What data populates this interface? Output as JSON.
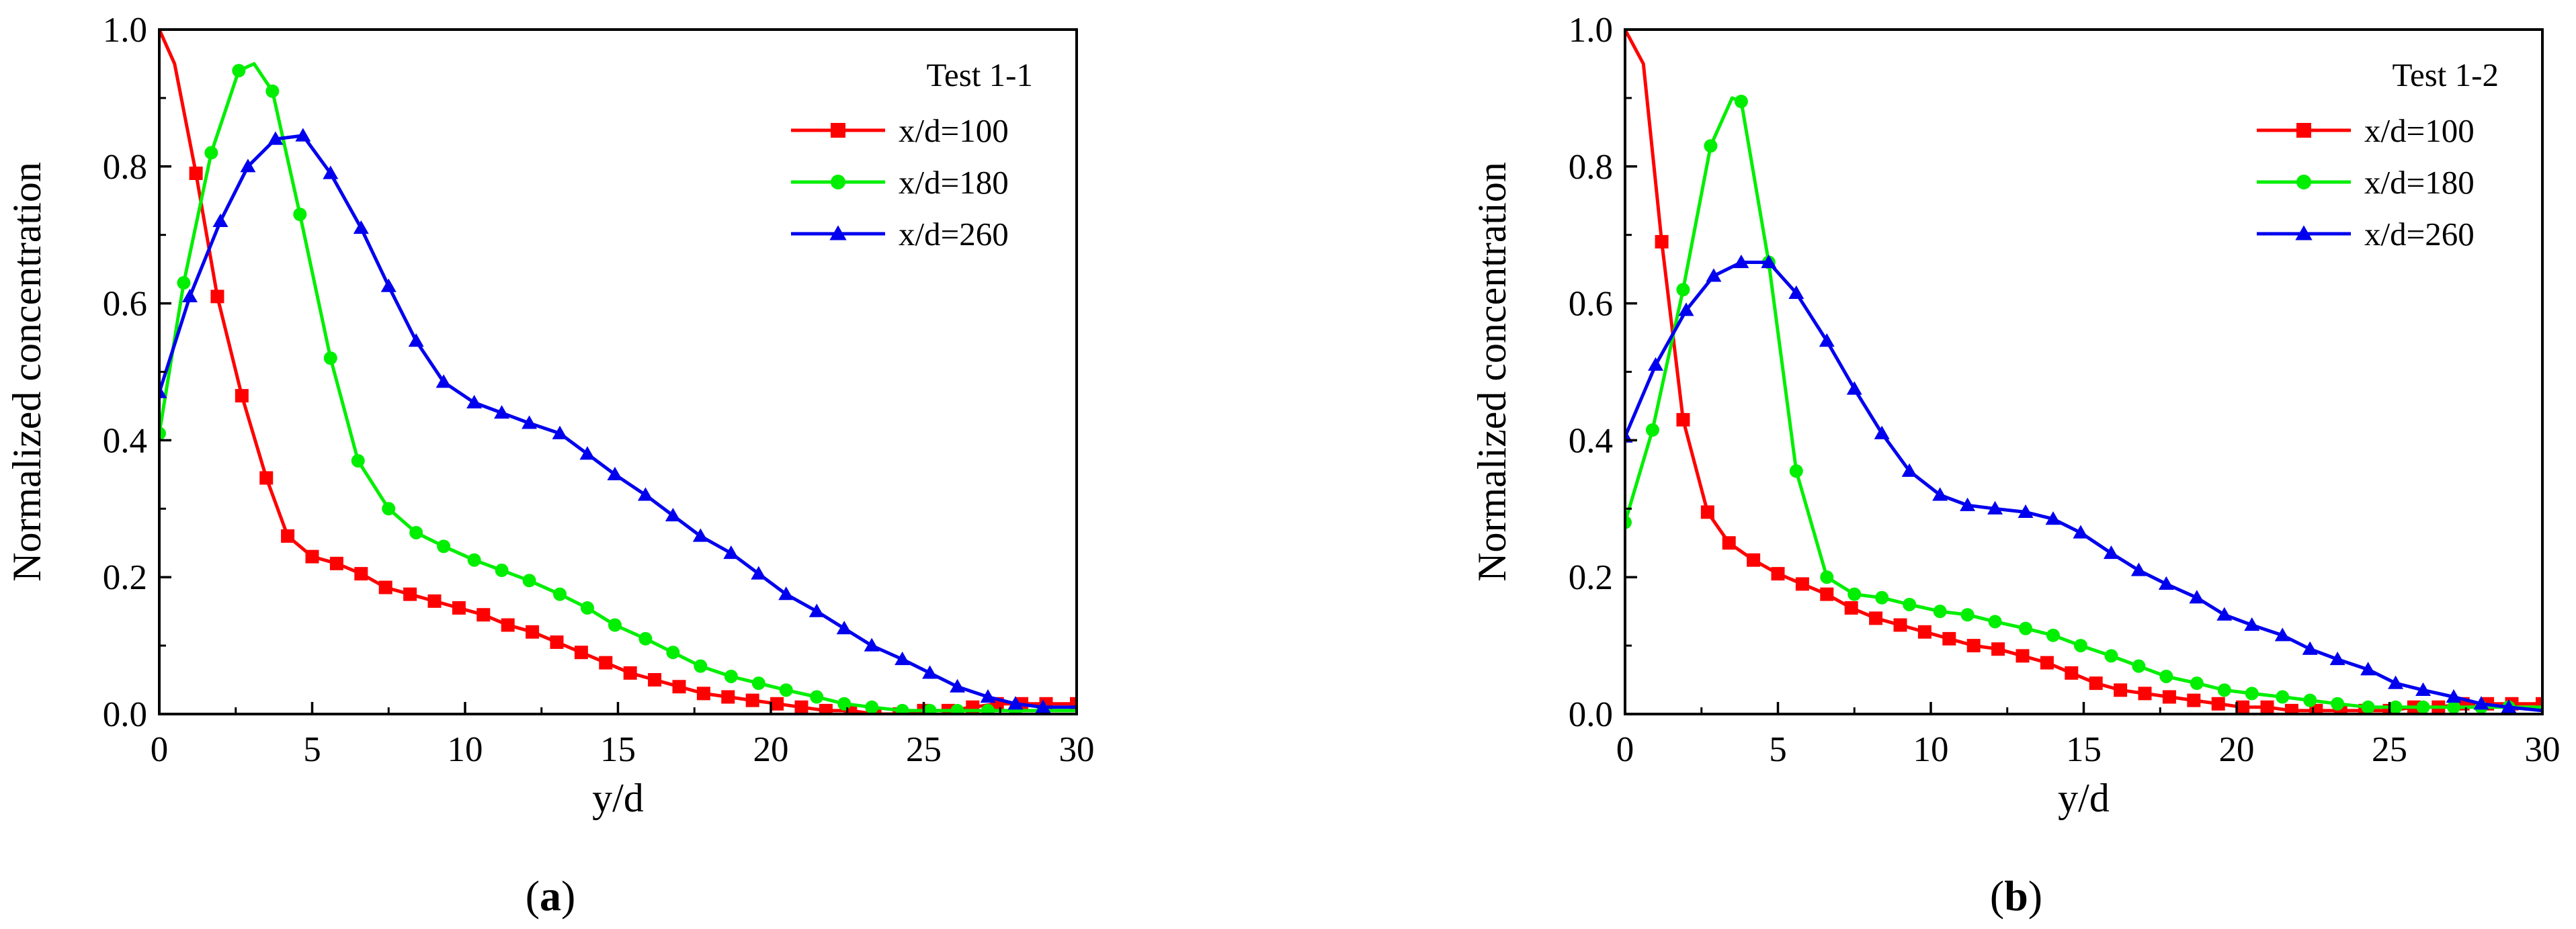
{
  "chart_data": [
    {
      "type": "line",
      "panel_label": "(a)",
      "panel_letter": "a",
      "legend_title": "Test 1-1",
      "xlabel": "y/d",
      "ylabel": "Normalized concentration",
      "xlim": [
        0,
        30
      ],
      "ylim": [
        0,
        1.0
      ],
      "xticks": [
        0,
        5,
        10,
        15,
        20,
        25,
        30
      ],
      "yticks": [
        0.0,
        0.2,
        0.4,
        0.6,
        0.8,
        1.0
      ],
      "ytick_labels": [
        "0.0",
        "0.2",
        "0.4",
        "0.6",
        "0.8",
        "1.0"
      ],
      "series": [
        {
          "name": "x/d=100",
          "color": "#ff0000",
          "marker": "square",
          "x": [
            0,
            0.5,
            1.2,
            1.9,
            2.7,
            3.5,
            4.2,
            5,
            5.8,
            6.6,
            7.4,
            8.2,
            9,
            9.8,
            10.6,
            11.4,
            12.2,
            13,
            13.8,
            14.6,
            15.4,
            16.2,
            17,
            17.8,
            18.6,
            19.4,
            20.2,
            21,
            21.8,
            22.6,
            23.4,
            24.2,
            25,
            25.8,
            26.6,
            27.4,
            28.2,
            29,
            30
          ],
          "y": [
            1.0,
            0.95,
            0.79,
            0.61,
            0.465,
            0.345,
            0.26,
            0.23,
            0.22,
            0.205,
            0.185,
            0.175,
            0.165,
            0.155,
            0.145,
            0.13,
            0.12,
            0.105,
            0.09,
            0.075,
            0.06,
            0.05,
            0.04,
            0.03,
            0.025,
            0.02,
            0.015,
            0.01,
            0.005,
            0.005,
            0.0,
            0.0,
            0.005,
            0.005,
            0.01,
            0.015,
            0.015,
            0.015,
            0.015
          ],
          "marker_x": [
            1.2,
            1.9,
            2.7,
            3.5,
            4.2,
            5,
            5.8,
            6.6,
            7.4,
            8.2,
            9,
            9.8,
            10.6,
            11.4,
            12.2,
            13,
            13.8,
            14.6,
            15.4,
            16.2,
            17,
            17.8,
            18.6,
            19.4,
            20.2,
            21,
            21.8,
            22.6,
            23.4,
            24.2,
            25,
            25.8,
            26.6,
            27.4,
            28.2,
            29,
            30
          ],
          "marker_y": [
            0.79,
            0.61,
            0.465,
            0.345,
            0.26,
            0.23,
            0.22,
            0.205,
            0.185,
            0.175,
            0.165,
            0.155,
            0.145,
            0.13,
            0.12,
            0.105,
            0.09,
            0.075,
            0.06,
            0.05,
            0.04,
            0.03,
            0.025,
            0.02,
            0.015,
            0.01,
            0.005,
            0.005,
            0.0,
            0.0,
            0.005,
            0.005,
            0.01,
            0.015,
            0.015,
            0.015,
            0.015
          ]
        },
        {
          "name": "x/d=180",
          "color": "#00ee00",
          "marker": "circle",
          "x": [
            0,
            0.8,
            1.7,
            2.6,
            3.1,
            3.7,
            4.6,
            5.6,
            6.5,
            7.5,
            8.4,
            9.3,
            10.3,
            11.2,
            12.1,
            13.1,
            14,
            14.9,
            15.9,
            16.8,
            17.7,
            18.7,
            19.6,
            20.5,
            21.5,
            22.4,
            23.3,
            24.3,
            25.2,
            26.1,
            27.1,
            28,
            28.9,
            30
          ],
          "y": [
            0.41,
            0.63,
            0.82,
            0.94,
            0.95,
            0.91,
            0.73,
            0.52,
            0.37,
            0.3,
            0.265,
            0.245,
            0.225,
            0.21,
            0.195,
            0.175,
            0.155,
            0.13,
            0.11,
            0.09,
            0.07,
            0.055,
            0.045,
            0.035,
            0.025,
            0.015,
            0.01,
            0.005,
            0.005,
            0.005,
            0.005,
            0.005,
            0.005,
            0.005
          ],
          "marker_x": [
            0,
            0.8,
            1.7,
            2.6,
            3.7,
            4.6,
            5.6,
            6.5,
            7.5,
            8.4,
            9.3,
            10.3,
            11.2,
            12.1,
            13.1,
            14,
            14.9,
            15.9,
            16.8,
            17.7,
            18.7,
            19.6,
            20.5,
            21.5,
            22.4,
            23.3,
            24.3,
            25.2,
            26.1,
            27.1,
            28,
            28.9
          ],
          "marker_y": [
            0.41,
            0.63,
            0.82,
            0.94,
            0.91,
            0.73,
            0.52,
            0.37,
            0.3,
            0.265,
            0.245,
            0.225,
            0.21,
            0.195,
            0.175,
            0.155,
            0.13,
            0.11,
            0.09,
            0.07,
            0.055,
            0.045,
            0.035,
            0.025,
            0.015,
            0.01,
            0.005,
            0.005,
            0.005,
            0.005,
            0.005,
            0.005
          ]
        },
        {
          "name": "x/d=260",
          "color": "#0000ee",
          "marker": "triangle",
          "x": [
            0,
            1,
            2,
            2.9,
            3.8,
            4.7,
            5.6,
            6.6,
            7.5,
            8.4,
            9.3,
            10.3,
            11.2,
            12.1,
            13.1,
            14,
            14.9,
            15.9,
            16.8,
            17.7,
            18.7,
            19.6,
            20.5,
            21.5,
            22.4,
            23.3,
            24.3,
            25.2,
            26.1,
            27.1,
            28,
            28.9,
            30
          ],
          "y": [
            0.47,
            0.61,
            0.72,
            0.8,
            0.84,
            0.845,
            0.79,
            0.71,
            0.625,
            0.545,
            0.485,
            0.455,
            0.44,
            0.425,
            0.41,
            0.38,
            0.35,
            0.32,
            0.29,
            0.26,
            0.235,
            0.205,
            0.175,
            0.15,
            0.125,
            0.1,
            0.08,
            0.06,
            0.04,
            0.025,
            0.015,
            0.01,
            0.01
          ],
          "marker_x": [
            0,
            1,
            2,
            2.9,
            3.8,
            4.7,
            5.6,
            6.6,
            7.5,
            8.4,
            9.3,
            10.3,
            11.2,
            12.1,
            13.1,
            14,
            14.9,
            15.9,
            16.8,
            17.7,
            18.7,
            19.6,
            20.5,
            21.5,
            22.4,
            23.3,
            24.3,
            25.2,
            26.1,
            27.1,
            28,
            28.9
          ],
          "marker_y": [
            0.47,
            0.61,
            0.72,
            0.8,
            0.84,
            0.845,
            0.79,
            0.71,
            0.625,
            0.545,
            0.485,
            0.455,
            0.44,
            0.425,
            0.41,
            0.38,
            0.35,
            0.32,
            0.29,
            0.26,
            0.235,
            0.205,
            0.175,
            0.15,
            0.125,
            0.1,
            0.08,
            0.06,
            0.04,
            0.025,
            0.015,
            0.01
          ]
        }
      ]
    },
    {
      "type": "line",
      "panel_label": "(b)",
      "panel_letter": "b",
      "legend_title": "Test 1-2",
      "xlabel": "y/d",
      "ylabel": "Normalized concentration",
      "xlim": [
        0,
        30
      ],
      "ylim": [
        0,
        1.0
      ],
      "xticks": [
        0,
        5,
        10,
        15,
        20,
        25,
        30
      ],
      "yticks": [
        0.0,
        0.2,
        0.4,
        0.6,
        0.8,
        1.0
      ],
      "ytick_labels": [
        "0.0",
        "0.2",
        "0.4",
        "0.6",
        "0.8",
        "1.0"
      ],
      "series": [
        {
          "name": "x/d=100",
          "color": "#ff0000",
          "marker": "square",
          "x": [
            0,
            0.6,
            1.2,
            1.9,
            2.7,
            3.4,
            4.2,
            5,
            5.8,
            6.6,
            7.4,
            8.2,
            9,
            9.8,
            10.6,
            11.4,
            12.2,
            13,
            13.8,
            14.6,
            15.4,
            16.2,
            17,
            17.8,
            18.6,
            19.4,
            20.2,
            21,
            21.8,
            22.6,
            23.4,
            24.2,
            25,
            25.8,
            26.6,
            27.4,
            28.2,
            29,
            30
          ],
          "y": [
            1.0,
            0.95,
            0.69,
            0.43,
            0.295,
            0.25,
            0.225,
            0.205,
            0.19,
            0.175,
            0.155,
            0.14,
            0.13,
            0.12,
            0.11,
            0.1,
            0.095,
            0.085,
            0.075,
            0.06,
            0.045,
            0.035,
            0.03,
            0.025,
            0.02,
            0.015,
            0.01,
            0.01,
            0.005,
            0.005,
            0.005,
            0.005,
            0.005,
            0.01,
            0.01,
            0.015,
            0.015,
            0.015,
            0.015
          ],
          "marker_x": [
            1.2,
            1.9,
            2.7,
            3.4,
            4.2,
            5,
            5.8,
            6.6,
            7.4,
            8.2,
            9,
            9.8,
            10.6,
            11.4,
            12.2,
            13,
            13.8,
            14.6,
            15.4,
            16.2,
            17,
            17.8,
            18.6,
            19.4,
            20.2,
            21,
            21.8,
            22.6,
            23.4,
            24.2,
            25,
            25.8,
            26.6,
            27.4,
            28.2,
            29,
            30
          ],
          "marker_y": [
            0.69,
            0.43,
            0.295,
            0.25,
            0.225,
            0.205,
            0.19,
            0.175,
            0.155,
            0.14,
            0.13,
            0.12,
            0.11,
            0.1,
            0.095,
            0.085,
            0.075,
            0.06,
            0.045,
            0.035,
            0.03,
            0.025,
            0.02,
            0.015,
            0.01,
            0.01,
            0.005,
            0.005,
            0.005,
            0.005,
            0.005,
            0.01,
            0.01,
            0.015,
            0.015,
            0.015,
            0.015
          ]
        },
        {
          "name": "x/d=180",
          "color": "#00ee00",
          "marker": "circle",
          "x": [
            0,
            0.9,
            1.9,
            2.8,
            3.5,
            3.8,
            4.7,
            5.6,
            6.6,
            7.5,
            8.4,
            9.3,
            10.3,
            11.2,
            12.1,
            13.1,
            14,
            14.9,
            15.9,
            16.8,
            17.7,
            18.7,
            19.6,
            20.5,
            21.5,
            22.4,
            23.3,
            24.3,
            25.2,
            26.1,
            27.1,
            28,
            28.9,
            30
          ],
          "y": [
            0.28,
            0.415,
            0.62,
            0.83,
            0.9,
            0.895,
            0.66,
            0.355,
            0.2,
            0.175,
            0.17,
            0.16,
            0.15,
            0.145,
            0.135,
            0.125,
            0.115,
            0.1,
            0.085,
            0.07,
            0.055,
            0.045,
            0.035,
            0.03,
            0.025,
            0.02,
            0.015,
            0.01,
            0.01,
            0.01,
            0.01,
            0.01,
            0.01,
            0.01
          ],
          "marker_x": [
            0,
            0.9,
            1.9,
            2.8,
            3.8,
            4.7,
            5.6,
            6.6,
            7.5,
            8.4,
            9.3,
            10.3,
            11.2,
            12.1,
            13.1,
            14,
            14.9,
            15.9,
            16.8,
            17.7,
            18.7,
            19.6,
            20.5,
            21.5,
            22.4,
            23.3,
            24.3,
            25.2,
            26.1,
            27.1,
            28,
            28.9
          ],
          "marker_y": [
            0.28,
            0.415,
            0.62,
            0.83,
            0.895,
            0.66,
            0.355,
            0.2,
            0.175,
            0.17,
            0.16,
            0.15,
            0.145,
            0.135,
            0.125,
            0.115,
            0.1,
            0.085,
            0.07,
            0.055,
            0.045,
            0.035,
            0.03,
            0.025,
            0.02,
            0.015,
            0.01,
            0.01,
            0.01,
            0.01,
            0.01,
            0.01
          ]
        },
        {
          "name": "x/d=260",
          "color": "#0000ee",
          "marker": "triangle",
          "x": [
            0,
            1,
            2,
            2.9,
            3.8,
            4.7,
            5.6,
            6.6,
            7.5,
            8.4,
            9.3,
            10.3,
            11.2,
            12.1,
            13.1,
            14,
            14.9,
            15.9,
            16.8,
            17.7,
            18.7,
            19.6,
            20.5,
            21.5,
            22.4,
            23.3,
            24.3,
            25.2,
            26.1,
            27.1,
            28,
            28.9,
            30
          ],
          "y": [
            0.405,
            0.51,
            0.59,
            0.64,
            0.66,
            0.66,
            0.615,
            0.545,
            0.475,
            0.41,
            0.355,
            0.32,
            0.305,
            0.3,
            0.295,
            0.285,
            0.265,
            0.235,
            0.21,
            0.19,
            0.17,
            0.145,
            0.13,
            0.115,
            0.095,
            0.08,
            0.065,
            0.045,
            0.035,
            0.025,
            0.015,
            0.01,
            0.005
          ],
          "marker_x": [
            0,
            1,
            2,
            2.9,
            3.8,
            4.7,
            5.6,
            6.6,
            7.5,
            8.4,
            9.3,
            10.3,
            11.2,
            12.1,
            13.1,
            14,
            14.9,
            15.9,
            16.8,
            17.7,
            18.7,
            19.6,
            20.5,
            21.5,
            22.4,
            23.3,
            24.3,
            25.2,
            26.1,
            27.1,
            28,
            28.9
          ],
          "marker_y": [
            0.405,
            0.51,
            0.59,
            0.64,
            0.66,
            0.66,
            0.615,
            0.545,
            0.475,
            0.41,
            0.355,
            0.32,
            0.305,
            0.3,
            0.295,
            0.285,
            0.265,
            0.235,
            0.21,
            0.19,
            0.17,
            0.145,
            0.13,
            0.115,
            0.095,
            0.08,
            0.065,
            0.045,
            0.035,
            0.025,
            0.015,
            0.01
          ]
        }
      ]
    }
  ]
}
